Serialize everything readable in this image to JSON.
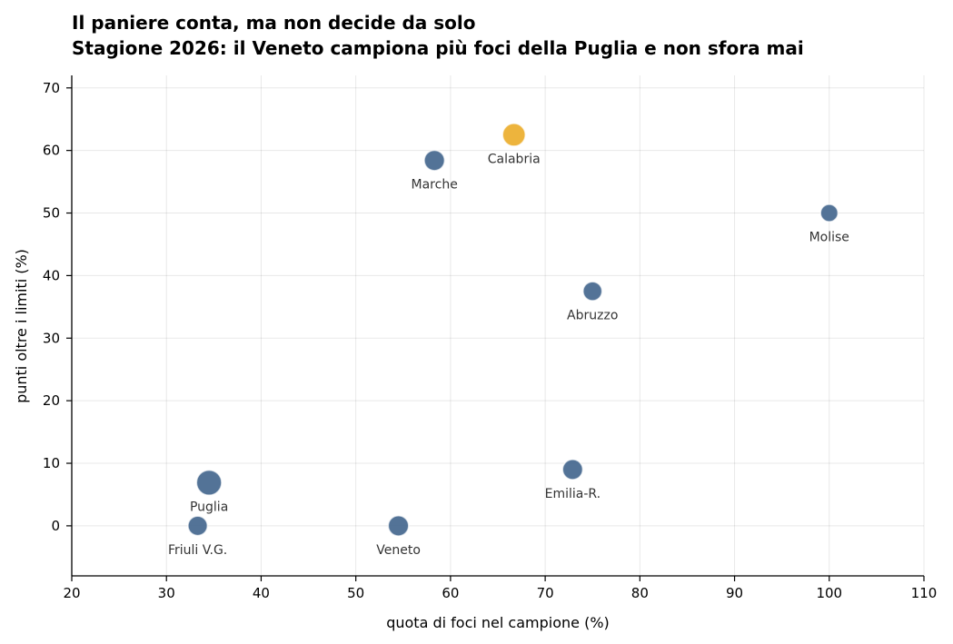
{
  "chart_data": {
    "type": "scatter",
    "title": "Il paniere conta, ma non decide da solo",
    "subtitle": "Stagione 2026: il Veneto campiona più foci della Puglia e non sfora mai",
    "xlabel": "quota di foci nel campione (%)",
    "ylabel": "punti oltre i limiti (%)",
    "xlim": [
      20,
      110
    ],
    "ylim": [
      -8,
      72
    ],
    "xticks": [
      "20",
      "30",
      "40",
      "50",
      "60",
      "70",
      "80",
      "90",
      "100",
      "110"
    ],
    "yticks": [
      "0",
      "10",
      "20",
      "30",
      "40",
      "50",
      "60",
      "70"
    ],
    "grid": true,
    "colors": {
      "default": "#4a6b91",
      "highlight": "#ecb033"
    },
    "points": [
      {
        "label": "Calabria",
        "x": 66.7,
        "y": 62.5,
        "size": 1.0,
        "highlight": true
      },
      {
        "label": "Marche",
        "x": 58.3,
        "y": 58.4,
        "size": 0.8,
        "highlight": false
      },
      {
        "label": "Molise",
        "x": 100,
        "y": 50,
        "size": 0.55,
        "highlight": false
      },
      {
        "label": "Abruzzo",
        "x": 75,
        "y": 37.5,
        "size": 0.68,
        "highlight": false
      },
      {
        "label": "Emilia-R.",
        "x": 72.9,
        "y": 9,
        "size": 0.78,
        "highlight": false
      },
      {
        "label": "Puglia",
        "x": 34.5,
        "y": 6.9,
        "size": 1.2,
        "highlight": false
      },
      {
        "label": "Friuli V.G.",
        "x": 33.3,
        "y": 0,
        "size": 0.72,
        "highlight": false
      },
      {
        "label": "Veneto",
        "x": 54.5,
        "y": 0,
        "size": 0.8,
        "highlight": false
      }
    ]
  }
}
